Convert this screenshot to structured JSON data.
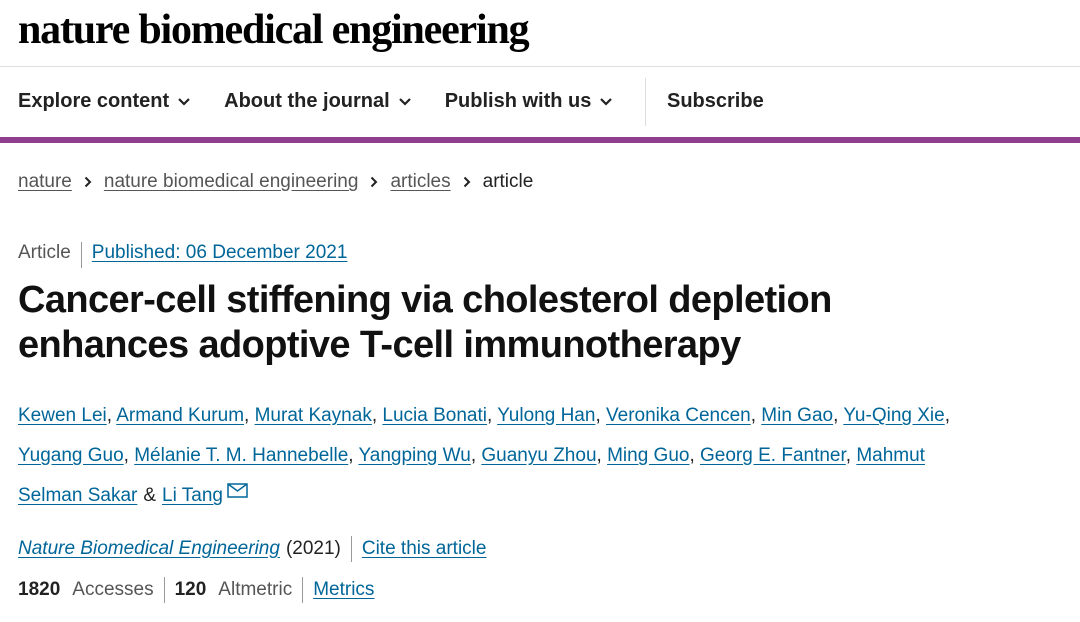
{
  "header": {
    "logo": "nature biomedical engineering",
    "nav": [
      "Explore content",
      "About the journal",
      "Publish with us"
    ],
    "subscribe": "Subscribe"
  },
  "breadcrumb": [
    "nature",
    "nature biomedical engineering",
    "articles",
    "article"
  ],
  "article": {
    "type": "Article",
    "published": "Published: 06 December 2021",
    "title": [
      "Cancer-cell stiffening via cholesterol depletion",
      "enhances adoptive T-cell immunotherapy"
    ],
    "authors": [
      {
        "name": "Kewen Lei",
        "after": ","
      },
      {
        "name": "Armand Kurum",
        "after": ","
      },
      {
        "name": "Murat Kaynak",
        "after": ","
      },
      {
        "name": "Lucia Bonati",
        "after": ","
      },
      {
        "name": "Yulong Han",
        "after": ","
      },
      {
        "name": "Veronika Cencen",
        "after": ","
      },
      {
        "name": "Min Gao",
        "after": ","
      },
      {
        "name": "Yu-Qing Xie",
        "after": ","
      },
      {
        "name": "Yugang Guo",
        "after": ","
      },
      {
        "name": "Mélanie T. M. Hannebelle",
        "after": ","
      },
      {
        "name": "Yangping Wu",
        "after": ","
      },
      {
        "name": "Guanyu Zhou",
        "after": ","
      },
      {
        "name": "Ming Guo",
        "after": ","
      },
      {
        "name": "Georg E. Fantner",
        "after": ","
      },
      {
        "name": "Mahmut Selman Sakar",
        "after": "&"
      },
      {
        "name": "Li Tang"
      }
    ],
    "journal": "Nature Biomedical Engineering",
    "year": "(2021)",
    "cite": "Cite this article",
    "accesses": {
      "value": "1820",
      "label": "Accesses"
    },
    "altmetric": {
      "value": "120",
      "label": "Altmetric"
    },
    "metrics": "Metrics"
  }
}
